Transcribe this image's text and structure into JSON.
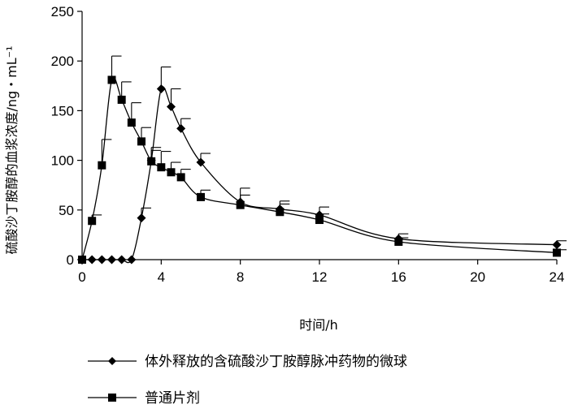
{
  "chart_data": {
    "type": "line",
    "xlabel": "时间/h",
    "ylabel": "硫酸沙丁胺醇的血浆浓度/ng・mL⁻¹",
    "xlim": [
      0,
      24
    ],
    "ylim": [
      0,
      250
    ],
    "x_ticks": [
      0,
      4,
      8,
      12,
      16,
      20,
      24
    ],
    "y_ticks": [
      0,
      50,
      100,
      150,
      200,
      250
    ],
    "grid": false,
    "legend_position": "bottom",
    "series": [
      {
        "name": "体外释放的含硫酸沙丁胺醇脉冲药物的微球",
        "marker": "diamond",
        "color": "#000000",
        "x": [
          0,
          0.5,
          1,
          1.5,
          2,
          2.5,
          3,
          3.5,
          4,
          4.5,
          5,
          6,
          8,
          10,
          12,
          16,
          24
        ],
        "y": [
          0,
          0,
          0,
          0,
          0,
          0,
          42,
          100,
          172,
          154,
          132,
          98,
          58,
          51,
          45,
          21,
          15
        ],
        "error": [
          0,
          0,
          0,
          0,
          0,
          0,
          10,
          10,
          22,
          18,
          10,
          9,
          14,
          8,
          8,
          5,
          4
        ]
      },
      {
        "name": "普通片剂",
        "marker": "square",
        "color": "#000000",
        "x": [
          0,
          0.5,
          1,
          1.5,
          2,
          2.5,
          3,
          3.5,
          4,
          4.5,
          5,
          6,
          8,
          10,
          12,
          16,
          24
        ],
        "y": [
          0,
          39,
          95,
          181,
          161,
          138,
          119,
          99,
          93,
          88,
          83,
          63,
          55,
          48,
          40,
          18,
          7
        ],
        "error": [
          0,
          6,
          26,
          24,
          18,
          20,
          14,
          14,
          16,
          10,
          8,
          7,
          10,
          8,
          6,
          4,
          3
        ]
      }
    ]
  }
}
